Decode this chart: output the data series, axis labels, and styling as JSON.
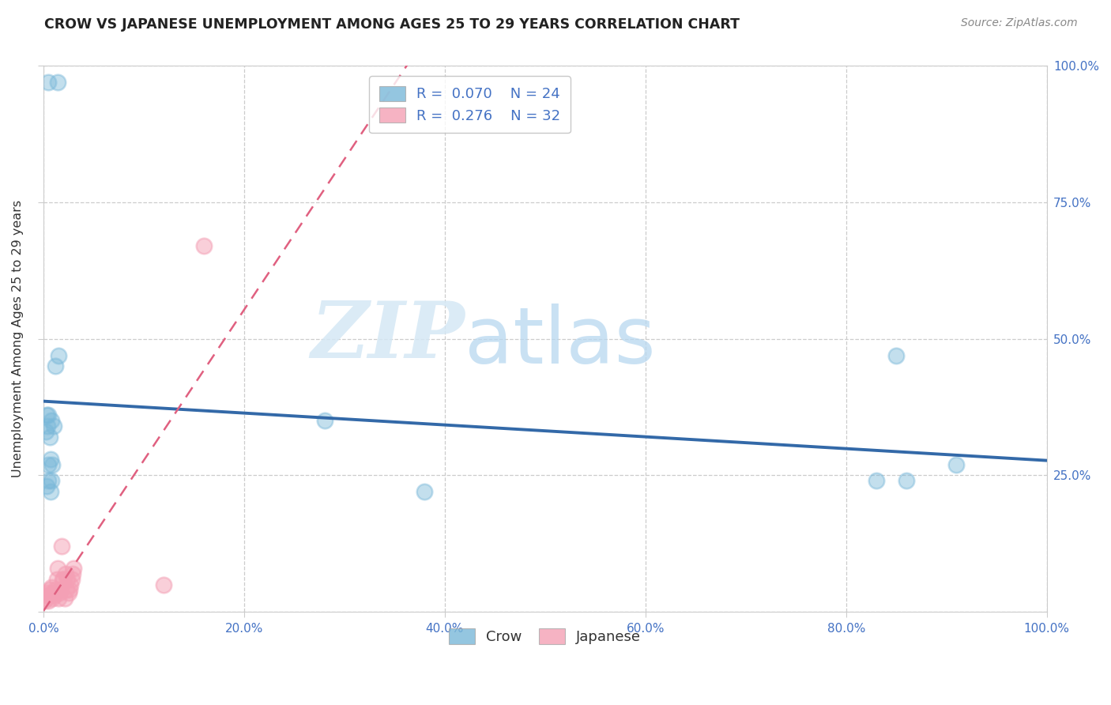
{
  "title": "CROW VS JAPANESE UNEMPLOYMENT AMONG AGES 25 TO 29 YEARS CORRELATION CHART",
  "source": "Source: ZipAtlas.com",
  "ylabel": "Unemployment Among Ages 25 to 29 years",
  "xlabel": "",
  "crow_R": 0.07,
  "crow_N": 24,
  "japanese_R": 0.276,
  "japanese_N": 32,
  "crow_color": "#7ab8d9",
  "japanese_color": "#f4a0b5",
  "trend_crow_color": "#3369a8",
  "trend_japanese_color": "#e06080",
  "crow_x": [
    0.005,
    0.014,
    0.002,
    0.003,
    0.004,
    0.005,
    0.006,
    0.007,
    0.008,
    0.009,
    0.01,
    0.012,
    0.015,
    0.28,
    0.005,
    0.003,
    0.005,
    0.007,
    0.008,
    0.85,
    0.91,
    0.83,
    0.86,
    0.38
  ],
  "crow_y": [
    0.97,
    0.97,
    0.33,
    0.36,
    0.34,
    0.36,
    0.32,
    0.28,
    0.35,
    0.27,
    0.34,
    0.45,
    0.47,
    0.35,
    0.27,
    0.23,
    0.24,
    0.22,
    0.24,
    0.47,
    0.27,
    0.24,
    0.24,
    0.22
  ],
  "japanese_x": [
    0.001,
    0.002,
    0.003,
    0.004,
    0.005,
    0.006,
    0.007,
    0.008,
    0.009,
    0.01,
    0.011,
    0.012,
    0.013,
    0.014,
    0.015,
    0.016,
    0.017,
    0.018,
    0.019,
    0.02,
    0.021,
    0.022,
    0.023,
    0.024,
    0.025,
    0.026,
    0.027,
    0.028,
    0.029,
    0.03,
    0.12,
    0.16
  ],
  "japanese_y": [
    0.02,
    0.025,
    0.03,
    0.035,
    0.02,
    0.04,
    0.03,
    0.045,
    0.025,
    0.035,
    0.03,
    0.04,
    0.06,
    0.08,
    0.025,
    0.035,
    0.04,
    0.12,
    0.06,
    0.06,
    0.025,
    0.07,
    0.04,
    0.06,
    0.035,
    0.04,
    0.05,
    0.06,
    0.07,
    0.08,
    0.05,
    0.67
  ],
  "xlim": [
    0.0,
    1.0
  ],
  "ylim": [
    0.0,
    1.0
  ],
  "xticks": [
    0.0,
    0.2,
    0.4,
    0.6,
    0.8,
    1.0
  ],
  "yticks": [
    0.0,
    0.25,
    0.5,
    0.75,
    1.0
  ],
  "watermark_zip": "ZIP",
  "watermark_atlas": "atlas",
  "background_color": "#ffffff",
  "grid_color": "#cccccc"
}
